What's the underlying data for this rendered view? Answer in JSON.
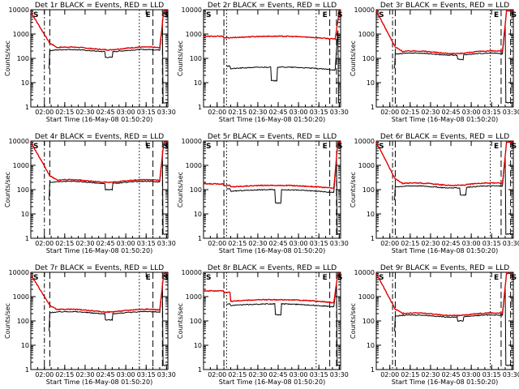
{
  "chart_data": {
    "type": "line",
    "shared": {
      "xlabel": "Start Time (16-May-08 01:50:20)",
      "ylabel": "Counts/sec",
      "x_ticks": [
        "02:00",
        "02:15",
        "02:30",
        "02:45",
        "03:00",
        "03:15",
        "03:30"
      ],
      "x_tick_minutes": [
        10,
        25,
        40,
        55,
        70,
        85,
        100
      ],
      "xlim_minutes": [
        0,
        101
      ],
      "y_scale": "log",
      "ylim": [
        1,
        10000
      ],
      "y_ticks": [
        "1",
        "10",
        "100",
        "1000",
        "10000"
      ],
      "y_tick_values": [
        1,
        10,
        100,
        1000,
        10000
      ],
      "series_colors": {
        "events": "#000000",
        "lld": "#e00000"
      },
      "markers": [
        "S",
        "E",
        "S"
      ]
    },
    "panels": [
      {
        "title": "Det 1r BLACK = Events, RED = LLD",
        "profile": "A",
        "lld_level": 260,
        "events_level": 210,
        "events_start": 200,
        "lld_start": 8000,
        "dip": [
          55,
          60,
          110
        ],
        "vlines": [
          {
            "x": 10,
            "style": "dashdot"
          },
          {
            "x": 14,
            "style": "dash"
          },
          {
            "x": 80,
            "style": "dot"
          },
          {
            "x": 90,
            "style": "dash"
          },
          {
            "x": 97,
            "style": "dash"
          }
        ],
        "end_rise": 95
      },
      {
        "title": "Det 2r BLACK = Events, RED = LLD",
        "profile": "B",
        "lld_level": 650,
        "events_level": 35,
        "events_start": 40,
        "lld_start": 700,
        "dip": [
          50,
          54,
          12
        ],
        "vlines": [
          {
            "x": 15,
            "style": "dash"
          },
          {
            "x": 17,
            "style": "dot"
          },
          {
            "x": 83,
            "style": "dot"
          },
          {
            "x": 93,
            "style": "dash"
          },
          {
            "x": 98,
            "style": "dash"
          }
        ],
        "end_rise": 97
      },
      {
        "title": "Det 3r BLACK = Events, RED = LLD",
        "profile": "A",
        "lld_level": 180,
        "events_level": 150,
        "events_start": 160,
        "lld_start": 9000,
        "dip": [
          60,
          64,
          90
        ],
        "vlines": [
          {
            "x": 12,
            "style": "dashdot"
          },
          {
            "x": 14,
            "style": "dash"
          },
          {
            "x": 84,
            "style": "dot"
          },
          {
            "x": 92,
            "style": "dash"
          },
          {
            "x": 99,
            "style": "dash"
          }
        ],
        "end_rise": 93
      },
      {
        "title": "Det 4r BLACK = Events, RED = LLD",
        "profile": "A",
        "lld_level": 230,
        "events_level": 200,
        "events_start": 210,
        "lld_start": 9000,
        "dip": [
          55,
          60,
          100
        ],
        "vlines": [
          {
            "x": 10,
            "style": "dashdot"
          },
          {
            "x": 14,
            "style": "dash"
          },
          {
            "x": 80,
            "style": "dot"
          },
          {
            "x": 90,
            "style": "dash"
          },
          {
            "x": 97,
            "style": "dash"
          }
        ],
        "end_rise": 95
      },
      {
        "title": "Det 5r BLACK = Events, RED = LLD",
        "profile": "C",
        "lld_level": 120,
        "events_level": 80,
        "events_start": 90,
        "lld_start": 150,
        "dip": [
          53,
          57,
          28
        ],
        "vlines": [
          {
            "x": 15,
            "style": "dash"
          },
          {
            "x": 17,
            "style": "dot"
          },
          {
            "x": 83,
            "style": "dot"
          },
          {
            "x": 93,
            "style": "dash"
          },
          {
            "x": 98,
            "style": "dash"
          }
        ],
        "end_rise": 96
      },
      {
        "title": "Det 6r BLACK = Events, RED = LLD",
        "profile": "A",
        "lld_level": 170,
        "events_level": 130,
        "events_start": 180,
        "lld_start": 9000,
        "dip": [
          62,
          66,
          60
        ],
        "vlines": [
          {
            "x": 12,
            "style": "dashdot"
          },
          {
            "x": 14,
            "style": "dash"
          },
          {
            "x": 84,
            "style": "dot"
          },
          {
            "x": 92,
            "style": "dash"
          },
          {
            "x": 99,
            "style": "dash"
          }
        ],
        "end_rise": 93
      },
      {
        "title": "Det 7r BLACK = Events, RED = LLD",
        "profile": "A",
        "lld_level": 270,
        "events_level": 220,
        "events_start": 210,
        "lld_start": 8000,
        "dip": [
          55,
          60,
          110
        ],
        "vlines": [
          {
            "x": 10,
            "style": "dashdot"
          },
          {
            "x": 14,
            "style": "dash"
          },
          {
            "x": 80,
            "style": "dot"
          },
          {
            "x": 90,
            "style": "dash"
          },
          {
            "x": 97,
            "style": "dash"
          }
        ],
        "end_rise": 95
      },
      {
        "title": "Det 8r BLACK = Events, RED = LLD",
        "profile": "C",
        "lld_level": 600,
        "events_level": 400,
        "events_start": 420,
        "lld_start": 1500,
        "dip": [
          53,
          57,
          180
        ],
        "vlines": [
          {
            "x": 15,
            "style": "dash"
          },
          {
            "x": 17,
            "style": "dot"
          },
          {
            "x": 83,
            "style": "dot"
          },
          {
            "x": 93,
            "style": "dash"
          },
          {
            "x": 98,
            "style": "dash"
          }
        ],
        "end_rise": 96
      },
      {
        "title": "Det 9r BLACK = Events, RED = LLD",
        "profile": "A",
        "lld_level": 190,
        "events_level": 160,
        "events_start": 180,
        "lld_start": 9000,
        "dip": [
          60,
          64,
          100
        ],
        "vlines": [
          {
            "x": 12,
            "style": "dashdot"
          },
          {
            "x": 14,
            "style": "dash"
          },
          {
            "x": 84,
            "style": "dot"
          },
          {
            "x": 92,
            "style": "dash"
          },
          {
            "x": 99,
            "style": "dash"
          }
        ],
        "end_rise": 93
      }
    ]
  }
}
